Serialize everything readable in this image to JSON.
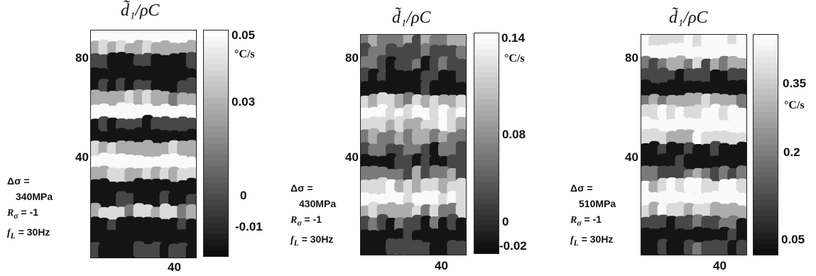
{
  "panels": [
    {
      "title": "d̃₁/ρC",
      "y_ticks": [
        "80",
        "40"
      ],
      "x_tick": "40",
      "colorbar_ticks": [
        "0.05",
        "0.03",
        "0",
        "-0.01"
      ],
      "unit": "°C/s",
      "delta_sigma_label": "Δσ =",
      "delta_sigma_value": "340MPa",
      "r_label": "R",
      "r_sub": "σ",
      "r_value": "= -1",
      "f_label": "f",
      "f_sub": "L",
      "f_value": "= 30Hz"
    },
    {
      "title": "d̃₁/ρC",
      "y_ticks": [
        "80",
        "40"
      ],
      "x_tick": "40",
      "colorbar_ticks": [
        "0.14",
        "0.08",
        "0",
        "-0.02"
      ],
      "unit": "°C/s",
      "delta_sigma_label": "Δσ =",
      "delta_sigma_value": "430MPa",
      "r_label": "R",
      "r_sub": "σ",
      "r_value": "= -1",
      "f_label": "f",
      "f_sub": "L",
      "f_value": "= 30Hz"
    },
    {
      "title": "d̃₁/ρC",
      "y_ticks": [
        "80",
        "40"
      ],
      "x_tick": "40",
      "colorbar_ticks": [
        "0.35",
        "0.2",
        "0.05"
      ],
      "unit": "°C/s",
      "delta_sigma_label": "Δσ =",
      "delta_sigma_value": "510MPa",
      "r_label": "R",
      "r_sub": "σ",
      "r_value": "= -1",
      "f_label": "f",
      "f_sub": "L",
      "f_value": "= 30Hz"
    }
  ],
  "chart_data": [
    {
      "type": "heatmap",
      "title": "d̃₁/ρC",
      "x_ticks": [
        40
      ],
      "y_ticks": [
        40,
        80
      ],
      "colorbar": {
        "ticks": [
          -0.01,
          0,
          0.03,
          0.05
        ],
        "unit": "°C/s",
        "colormap": "gray"
      },
      "row_values_top_to_bottom": [
        0.05,
        0.03,
        0.0,
        -0.01,
        0.0,
        0.03,
        0.05,
        0.0,
        -0.01,
        0.03,
        0.05,
        0.03,
        -0.01,
        0.0,
        0.03,
        0.0,
        -0.01,
        0.0
      ],
      "conditions": {
        "delta_sigma": "340MPa",
        "R_sigma": -1,
        "f_L": "30Hz"
      }
    },
    {
      "type": "heatmap",
      "title": "d̃₁/ρC",
      "x_ticks": [
        40
      ],
      "y_ticks": [
        40,
        80
      ],
      "colorbar": {
        "ticks": [
          -0.02,
          0,
          0.08,
          0.14
        ],
        "unit": "°C/s",
        "colormap": "gray"
      },
      "row_values_top_to_bottom": [
        0.06,
        0.04,
        0.02,
        -0.01,
        0.0,
        0.08,
        0.12,
        0.1,
        0.06,
        0.03,
        -0.01,
        0.04,
        0.1,
        0.13,
        0.08,
        0.02,
        -0.02,
        0.0
      ],
      "conditions": {
        "delta_sigma": "430MPa",
        "R_sigma": -1,
        "f_L": "30Hz"
      }
    },
    {
      "type": "heatmap",
      "title": "d̃₁/ρC",
      "x_ticks": [
        40
      ],
      "y_ticks": [
        40,
        80
      ],
      "colorbar": {
        "ticks": [
          0.05,
          0.2,
          0.35
        ],
        "unit": "°C/s",
        "colormap": "gray"
      },
      "row_values_top_to_bottom": [
        0.3,
        0.35,
        0.2,
        0.1,
        0.05,
        0.2,
        0.3,
        0.38,
        0.25,
        0.1,
        0.05,
        0.15,
        0.3,
        0.36,
        0.25,
        0.12,
        0.05,
        0.1
      ],
      "conditions": {
        "delta_sigma": "510MPa",
        "R_sigma": -1,
        "f_L": "30Hz"
      }
    }
  ]
}
